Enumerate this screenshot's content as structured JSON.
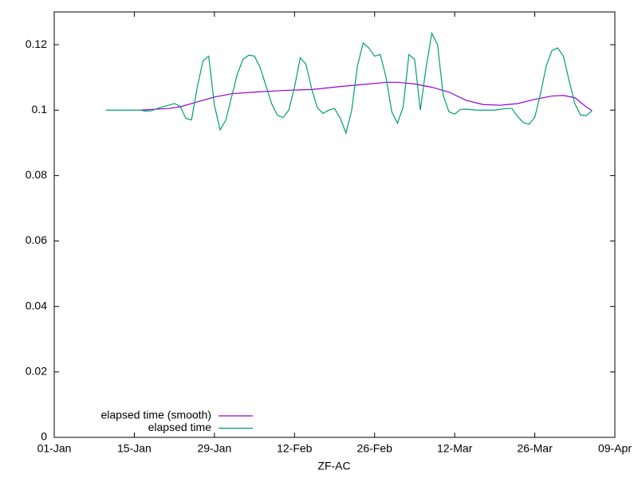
{
  "chart_data": {
    "type": "line",
    "xlabel": "ZF-AC",
    "xlim": [
      0,
      98
    ],
    "xticks": [
      {
        "value": 0,
        "label": "01-Jan"
      },
      {
        "value": 14,
        "label": "15-Jan"
      },
      {
        "value": 28,
        "label": "29-Jan"
      },
      {
        "value": 42,
        "label": "12-Feb"
      },
      {
        "value": 56,
        "label": "26-Feb"
      },
      {
        "value": 70,
        "label": "12-Mar"
      },
      {
        "value": 84,
        "label": "26-Mar"
      },
      {
        "value": 98,
        "label": "09-Apr"
      }
    ],
    "ylim": [
      0,
      0.13
    ],
    "yticks": [
      0,
      0.02,
      0.04,
      0.06,
      0.08,
      0.1,
      0.12
    ],
    "legend": "bottom-left",
    "series": [
      {
        "name": "elapsed time (smooth)",
        "color": "#9400d3",
        "x": [
          15,
          20,
          22,
          25,
          28,
          31,
          35,
          40,
          45,
          50,
          55,
          58,
          60,
          63,
          66,
          69,
          72,
          75,
          78,
          81,
          84,
          87,
          89,
          91,
          93,
          94
        ],
        "values": [
          0.1,
          0.1005,
          0.101,
          0.1025,
          0.104,
          0.105,
          0.1055,
          0.106,
          0.1063,
          0.1072,
          0.108,
          0.1085,
          0.1085,
          0.108,
          0.107,
          0.1055,
          0.103,
          0.1017,
          0.1015,
          0.102,
          0.1033,
          0.1043,
          0.1045,
          0.1038,
          0.101,
          0.0998
        ]
      },
      {
        "name": "elapsed time",
        "color": "#009e73",
        "x": [
          9,
          12,
          15,
          16,
          17,
          18,
          19,
          20,
          21,
          22,
          23,
          24,
          25,
          26,
          27,
          28,
          29,
          30,
          31,
          32,
          33,
          34,
          35,
          36,
          37,
          38,
          39,
          40,
          41,
          42,
          43,
          44,
          45,
          46,
          47,
          48,
          49,
          50,
          51,
          52,
          53,
          54,
          55,
          56,
          57,
          58,
          59,
          60,
          61,
          62,
          63,
          64,
          65,
          66,
          67,
          68,
          69,
          70,
          71,
          72,
          74,
          77,
          79,
          80,
          81,
          82,
          83,
          84,
          85,
          86,
          87,
          88,
          89,
          90,
          91,
          92,
          93,
          94
        ],
        "values": [
          0.1,
          0.1,
          0.1,
          0.0997,
          0.0998,
          0.1005,
          0.101,
          0.1015,
          0.102,
          0.1012,
          0.0975,
          0.097,
          0.107,
          0.115,
          0.1165,
          0.1015,
          0.094,
          0.097,
          0.104,
          0.111,
          0.1155,
          0.1168,
          0.1165,
          0.113,
          0.1075,
          0.102,
          0.0985,
          0.0977,
          0.1,
          0.107,
          0.116,
          0.114,
          0.1065,
          0.1007,
          0.099,
          0.1,
          0.1005,
          0.0975,
          0.093,
          0.1,
          0.1135,
          0.1205,
          0.119,
          0.1165,
          0.117,
          0.11,
          0.0995,
          0.096,
          0.101,
          0.117,
          0.1155,
          0.1,
          0.113,
          0.1235,
          0.12,
          0.1045,
          0.0995,
          0.0988,
          0.1002,
          0.1003,
          0.1,
          0.1,
          0.1005,
          0.1005,
          0.098,
          0.0962,
          0.0957,
          0.0978,
          0.105,
          0.1135,
          0.1182,
          0.119,
          0.1165,
          0.109,
          0.102,
          0.0985,
          0.0983,
          0.0998
        ]
      }
    ]
  }
}
